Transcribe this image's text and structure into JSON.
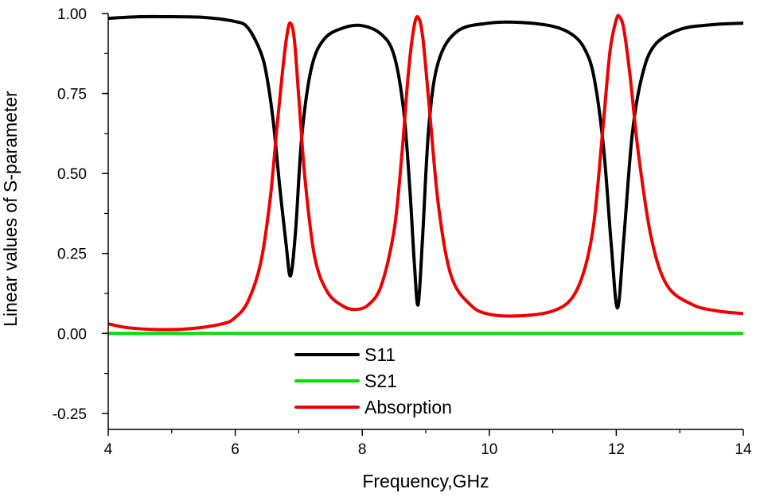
{
  "chart_data": {
    "type": "line",
    "title": "",
    "xlabel": "Frequency,GHz",
    "ylabel": "Linear values of S-parameter",
    "xlim": [
      4,
      14
    ],
    "ylim": [
      -0.3,
      1.0
    ],
    "x_ticks": [
      4,
      6,
      8,
      10,
      12,
      14
    ],
    "x_tick_labels": [
      "4",
      "6",
      "8",
      "10",
      "12",
      "14"
    ],
    "y_ticks": [
      1.0,
      0.75,
      0.5,
      0.25,
      0.0,
      -0.25
    ],
    "y_tick_labels": [
      "1.00",
      "0.75",
      "0.50",
      "0.25",
      "0.00",
      "-0.25"
    ],
    "grid": false,
    "legend_position": "lower-center",
    "series": [
      {
        "name": "S11",
        "color": "#000000",
        "x": [
          4.0,
          4.5,
          5.0,
          5.5,
          6.0,
          6.2,
          6.4,
          6.5,
          6.6,
          6.7,
          6.8,
          6.87,
          6.95,
          7.05,
          7.2,
          7.4,
          7.7,
          8.0,
          8.3,
          8.5,
          8.65,
          8.75,
          8.82,
          8.88,
          8.95,
          9.05,
          9.2,
          9.5,
          10.0,
          10.5,
          11.0,
          11.3,
          11.5,
          11.65,
          11.8,
          11.92,
          12.02,
          12.12,
          12.25,
          12.4,
          12.6,
          13.0,
          13.5,
          14.0
        ],
        "y": [
          0.985,
          0.99,
          0.99,
          0.988,
          0.975,
          0.955,
          0.88,
          0.8,
          0.66,
          0.46,
          0.28,
          0.18,
          0.32,
          0.62,
          0.83,
          0.92,
          0.955,
          0.962,
          0.935,
          0.87,
          0.7,
          0.45,
          0.22,
          0.09,
          0.3,
          0.65,
          0.85,
          0.945,
          0.97,
          0.972,
          0.96,
          0.935,
          0.89,
          0.8,
          0.58,
          0.28,
          0.08,
          0.3,
          0.62,
          0.8,
          0.9,
          0.95,
          0.965,
          0.97
        ]
      },
      {
        "name": "S21",
        "color": "#00e000",
        "x": [
          4.0,
          14.0
        ],
        "y": [
          0.0,
          0.0
        ]
      },
      {
        "name": "Absorption",
        "color": "#ee0000",
        "x": [
          4.0,
          4.3,
          4.8,
          5.3,
          5.8,
          6.0,
          6.2,
          6.4,
          6.55,
          6.65,
          6.75,
          6.82,
          6.87,
          6.93,
          7.0,
          7.1,
          7.25,
          7.45,
          7.7,
          7.9,
          8.1,
          8.3,
          8.5,
          8.62,
          8.72,
          8.8,
          8.87,
          8.95,
          9.05,
          9.2,
          9.4,
          9.7,
          10.0,
          10.5,
          11.0,
          11.3,
          11.5,
          11.65,
          11.78,
          11.9,
          12.0,
          12.05,
          12.12,
          12.22,
          12.35,
          12.55,
          12.8,
          13.2,
          13.6,
          14.0
        ],
        "y": [
          0.03,
          0.018,
          0.012,
          0.015,
          0.03,
          0.05,
          0.1,
          0.22,
          0.42,
          0.63,
          0.83,
          0.94,
          0.97,
          0.92,
          0.74,
          0.48,
          0.24,
          0.13,
          0.085,
          0.075,
          0.09,
          0.15,
          0.32,
          0.55,
          0.8,
          0.94,
          0.99,
          0.93,
          0.72,
          0.4,
          0.18,
          0.09,
          0.06,
          0.055,
          0.07,
          0.11,
          0.2,
          0.35,
          0.62,
          0.88,
          0.98,
          0.99,
          0.95,
          0.8,
          0.56,
          0.3,
          0.15,
          0.09,
          0.07,
          0.062
        ]
      }
    ]
  }
}
